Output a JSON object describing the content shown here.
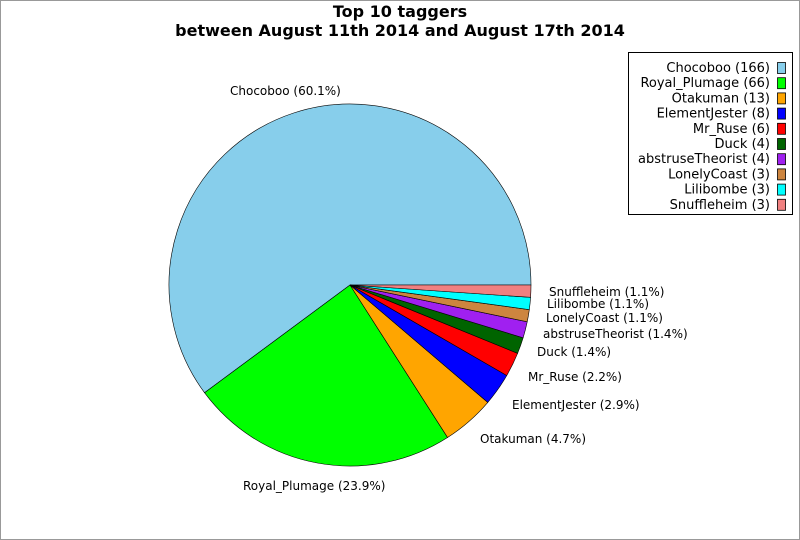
{
  "chart_data": {
    "type": "pie",
    "title": "Top 10 taggers",
    "subtitle": "between August 11th 2014 and August 17th 2014",
    "legend_position": "top-right",
    "slices": [
      {
        "name": "Chocoboo",
        "value": 166,
        "legend": "Chocoboo (166)",
        "label": "Chocoboo (60.1%)",
        "color": "#87ceeb"
      },
      {
        "name": "Royal_Plumage",
        "value": 66,
        "legend": "Royal_Plumage (66)",
        "label": "Royal_Plumage (23.9%)",
        "color": "#00ff00"
      },
      {
        "name": "Otakuman",
        "value": 13,
        "legend": "Otakuman (13)",
        "label": "Otakuman (4.7%)",
        "color": "#ffa500"
      },
      {
        "name": "ElementJester",
        "value": 8,
        "legend": "ElementJester (8)",
        "label": "ElementJester (2.9%)",
        "color": "#0000ff"
      },
      {
        "name": "Mr_Ruse",
        "value": 6,
        "legend": "Mr_Ruse (6)",
        "label": "Mr_Ruse (2.2%)",
        "color": "#ff0000"
      },
      {
        "name": "Duck",
        "value": 4,
        "legend": "Duck (4)",
        "label": "Duck (1.4%)",
        "color": "#006400"
      },
      {
        "name": "abstruseTheorist",
        "value": 4,
        "legend": "abstruseTheorist (4)",
        "label": "abstruseTheorist (1.4%)",
        "color": "#a020f0"
      },
      {
        "name": "LonelyCoast",
        "value": 3,
        "legend": "LonelyCoast (3)",
        "label": "LonelyCoast (1.1%)",
        "color": "#cd853f"
      },
      {
        "name": "Lilibombe",
        "value": 3,
        "legend": "Lilibombe (3)",
        "label": "Lilibombe (1.1%)",
        "color": "#00ffff"
      },
      {
        "name": "Snuffleheim",
        "value": 3,
        "legend": "Snuffleheim (3)",
        "label": "Snuffleheim (1.1%)",
        "color": "#f08080"
      }
    ]
  }
}
